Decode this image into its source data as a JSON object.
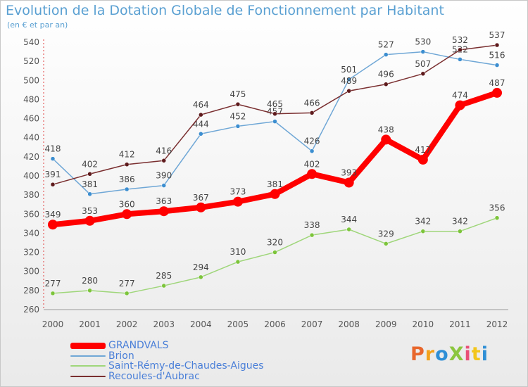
{
  "header": {
    "title": "Evolution de la Dotation Globale de Fonctionnement par Habitant",
    "subtitle": "(en € et par an)"
  },
  "watermark": {
    "text": "ProXiti",
    "colors": [
      "#e8672c",
      "#f3a21b",
      "#2f8fd6",
      "#8cc63f",
      "#e94e77",
      "#f3c61b",
      "#2f8fd6"
    ]
  },
  "chart_data": {
    "type": "line",
    "x": [
      "2000",
      "2001",
      "2002",
      "2003",
      "2004",
      "2005",
      "2006",
      "2007",
      "2008",
      "2009",
      "2010",
      "2011",
      "2012"
    ],
    "ylim": [
      260,
      540
    ],
    "yticks": [
      260,
      280,
      300,
      320,
      340,
      360,
      380,
      400,
      420,
      440,
      460,
      480,
      500,
      520,
      540
    ],
    "grid": false,
    "legend": "bottom-left",
    "series": [
      {
        "name": "Saint-Rémy-de-Chaudes-Aigues",
        "color": "#9fd67a",
        "marker": "#7cc43a",
        "width": 1.5,
        "values": [
          277,
          280,
          277,
          285,
          294,
          310,
          320,
          338,
          344,
          329,
          342,
          342,
          356
        ]
      },
      {
        "name": "Brion",
        "color": "#6fa7d6",
        "marker": "#3c8ed0",
        "width": 1.5,
        "values": [
          418,
          381,
          386,
          390,
          444,
          452,
          457,
          426,
          501,
          527,
          530,
          522,
          516
        ]
      },
      {
        "name": "Recoules-d'Aubrac",
        "color": "#7a2f30",
        "marker": "#5e1a1c",
        "width": 1.5,
        "values": [
          391,
          402,
          412,
          416,
          464,
          475,
          465,
          466,
          489,
          496,
          507,
          532,
          537
        ]
      },
      {
        "name": "GRANDVALS",
        "color": "#ff0000",
        "marker": "#ff0000",
        "width": 8,
        "values": [
          349,
          353,
          360,
          363,
          367,
          373,
          381,
          402,
          393,
          438,
          417,
          474,
          487
        ]
      }
    ],
    "legend_order": [
      "GRANDVALS",
      "Brion",
      "Saint-Rémy-de-Chaudes-Aigues",
      "Recoules-d'Aubrac"
    ]
  }
}
